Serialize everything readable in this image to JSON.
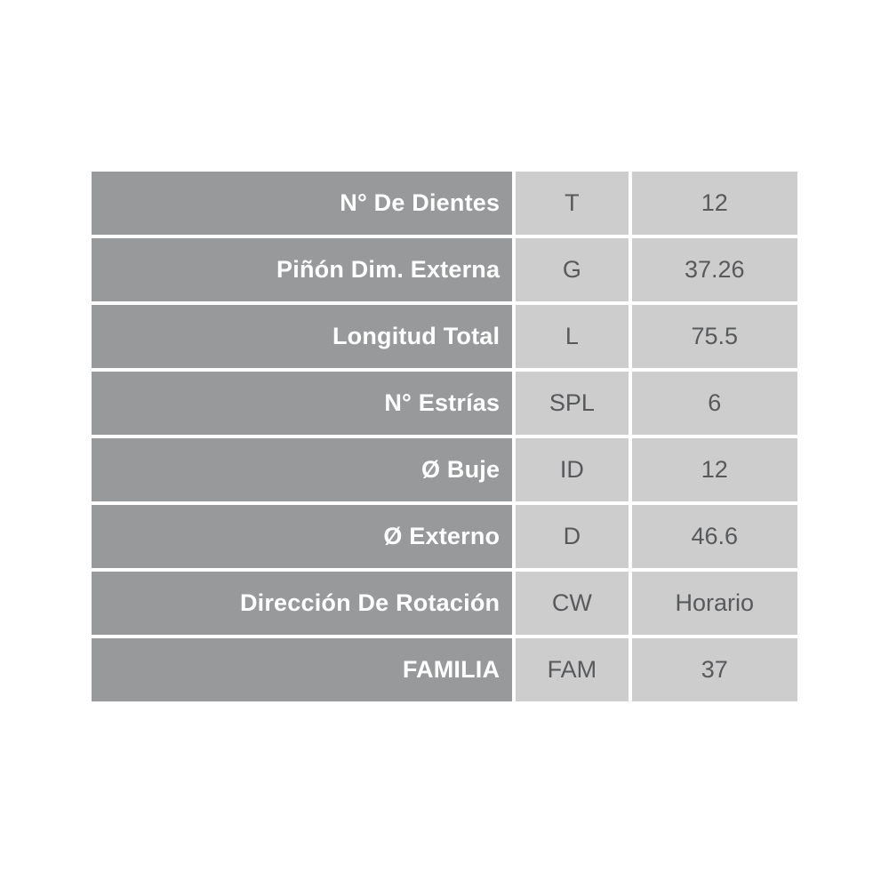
{
  "colors": {
    "label_bg": "#97999B",
    "value_bg": "#CDCDCE",
    "label_text": "#FFFFFF",
    "value_text": "#58595B",
    "page_bg": "#FFFFFF"
  },
  "spec_table": {
    "rows": [
      {
        "label": "N° De Dientes",
        "code": "T",
        "value": "12"
      },
      {
        "label": "Piñón Dim. Externa",
        "code": "G",
        "value": "37.26"
      },
      {
        "label": "Longitud Total",
        "code": "L",
        "value": "75.5"
      },
      {
        "label": "N° Estrías",
        "code": "SPL",
        "value": "6"
      },
      {
        "label": "Ø Buje",
        "code": "ID",
        "value": "12"
      },
      {
        "label": "Ø Externo",
        "code": "D",
        "value": "46.6"
      },
      {
        "label": "Dirección De Rotación",
        "code": "CW",
        "value": "Horario"
      },
      {
        "label": "FAMILIA",
        "code": "FAM",
        "value": "37"
      }
    ]
  }
}
